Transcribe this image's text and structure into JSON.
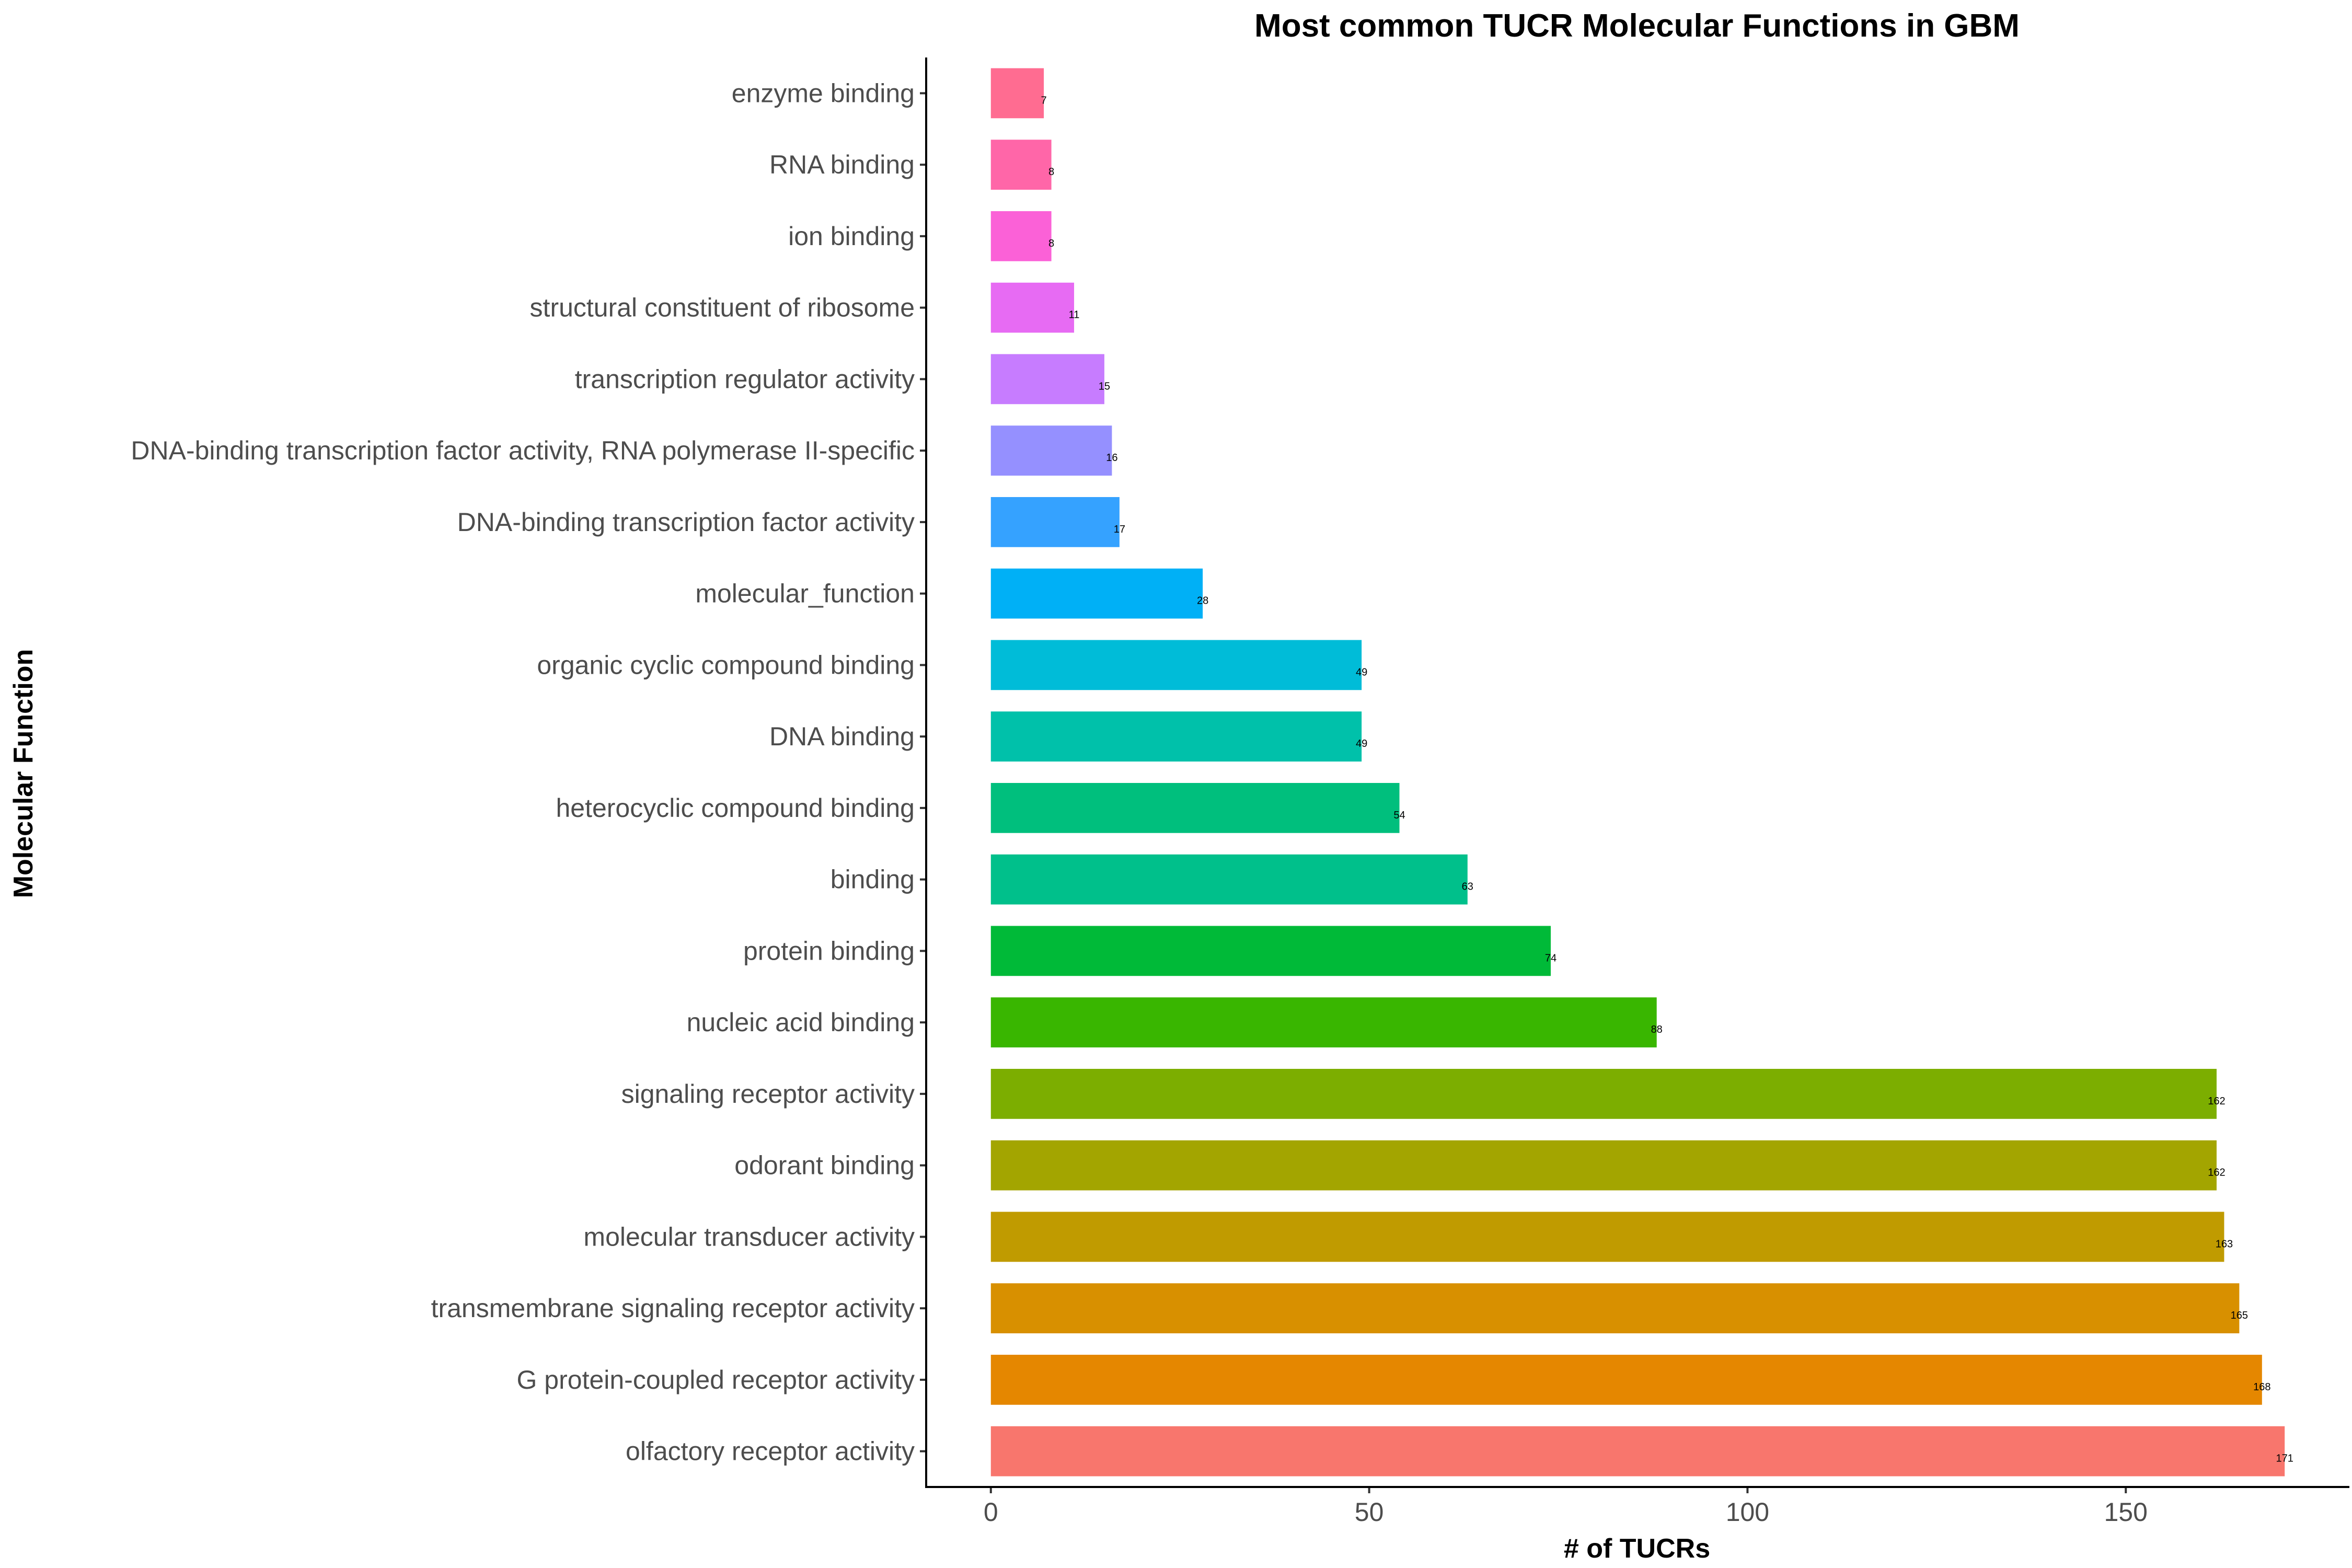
{
  "chart_data": {
    "type": "bar",
    "orientation": "horizontal",
    "title": "Most common TUCR Molecular Functions in GBM",
    "xlabel": "# of TUCRs",
    "ylabel": "Molecular Function",
    "xlim": [
      -8.55,
      179.55
    ],
    "x_ticks": [
      0,
      50,
      100,
      150
    ],
    "grid": false,
    "legend": "none",
    "categories": [
      "enzyme binding",
      "RNA binding",
      "ion binding",
      "structural constituent of ribosome",
      "transcription regulator activity",
      "DNA-binding transcription factor activity, RNA polymerase II-specific",
      "DNA-binding transcription factor activity",
      "molecular_function",
      "organic cyclic compound binding",
      "DNA binding",
      "heterocyclic compound binding",
      "binding",
      "protein binding",
      "nucleic acid binding",
      "signaling receptor activity",
      "odorant binding",
      "molecular transducer activity",
      "transmembrane signaling receptor activity",
      "G protein-coupled receptor activity",
      "olfactory receptor activity"
    ],
    "values": [
      7,
      8,
      8,
      11,
      15,
      16,
      17,
      28,
      49,
      49,
      54,
      63,
      74,
      88,
      162,
      162,
      163,
      165,
      168,
      171
    ],
    "colors": [
      "#FF6C91",
      "#FF66A8",
      "#FB61D7",
      "#E76BF3",
      "#C77CFF",
      "#9590FF",
      "#35A2FF",
      "#00B0F6",
      "#00BCD8",
      "#00C1AA",
      "#00BF7D",
      "#00C08B",
      "#00BA38",
      "#39B600",
      "#7CAE00",
      "#A3A500",
      "#C09B00",
      "#D89000",
      "#E58700",
      "#F8766D"
    ]
  }
}
